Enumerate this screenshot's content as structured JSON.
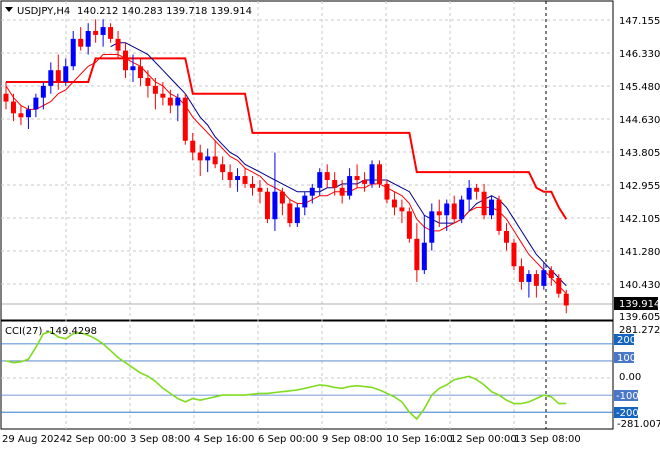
{
  "header": {
    "symbol_timeframe": "USDJPY,H4",
    "ohlc": "140.212 140.283 139.718 139.914"
  },
  "price_panel": {
    "axis_labels": [
      "147.155",
      "146.330",
      "145.480",
      "144.630",
      "143.805",
      "142.955",
      "142.105",
      "141.280",
      "140.430",
      "139.605"
    ],
    "current_price": "139.914"
  },
  "cci_panel": {
    "title": "CCI(27) -149.4298",
    "axis_labels": [
      "281.2729",
      "0.00",
      "-281.0073"
    ],
    "levels": [
      "200",
      "100",
      "-100",
      "-200"
    ]
  },
  "time_axis": [
    "29 Aug 2024",
    "2 Sep 00:00",
    "3 Sep 08:00",
    "4 Sep 16:00",
    "6 Sep 00:00",
    "9 Sep 08:00",
    "10 Sep 16:00",
    "12 Sep 00:00",
    "13 Sep 08:00"
  ],
  "colors": {
    "bull": "#0000ff",
    "bear": "#ff0000",
    "ma_fast": "#ff0000",
    "ma_slow": "#00008b",
    "cci": "#7fdc1e",
    "level_band": "#1565c0",
    "level_band_light": "#4a78c8"
  },
  "chart_data": [
    {
      "type": "candlestick",
      "title": "USDJPY,H4",
      "ylim": [
        139.605,
        147.155
      ],
      "candles": [
        [
          145.3,
          145.6,
          144.9,
          145.1
        ],
        [
          145.1,
          145.3,
          144.6,
          144.8
        ],
        [
          144.8,
          145.0,
          144.5,
          144.7
        ],
        [
          144.7,
          145.0,
          144.4,
          144.9
        ],
        [
          144.9,
          145.3,
          144.7,
          145.2
        ],
        [
          145.2,
          145.6,
          144.9,
          145.5
        ],
        [
          145.5,
          146.1,
          145.3,
          145.9
        ],
        [
          145.9,
          146.3,
          145.4,
          145.6
        ],
        [
          145.6,
          146.2,
          145.5,
          146.0
        ],
        [
          146.0,
          146.9,
          145.9,
          146.7
        ],
        [
          146.7,
          147.0,
          146.4,
          146.5
        ],
        [
          146.5,
          147.1,
          146.3,
          146.9
        ],
        [
          146.9,
          147.2,
          146.6,
          146.8
        ],
        [
          146.8,
          147.2,
          146.5,
          147.0
        ],
        [
          147.0,
          147.1,
          146.6,
          146.7
        ],
        [
          146.7,
          146.9,
          146.2,
          146.4
        ],
        [
          146.4,
          146.6,
          145.7,
          145.9
        ],
        [
          145.9,
          146.3,
          145.6,
          146.0
        ],
        [
          146.0,
          146.2,
          145.5,
          145.7
        ],
        [
          145.7,
          145.9,
          145.2,
          145.5
        ],
        [
          145.5,
          145.7,
          144.9,
          145.3
        ],
        [
          145.3,
          145.6,
          145.0,
          145.2
        ],
        [
          145.2,
          145.4,
          144.8,
          145.0
        ],
        [
          145.0,
          145.3,
          144.6,
          145.2
        ],
        [
          145.2,
          145.3,
          144.0,
          144.1
        ],
        [
          144.1,
          144.3,
          143.6,
          143.8
        ],
        [
          143.8,
          144.0,
          143.2,
          143.6
        ],
        [
          143.6,
          143.9,
          143.3,
          143.7
        ],
        [
          143.7,
          144.1,
          143.4,
          143.5
        ],
        [
          143.5,
          143.7,
          143.1,
          143.3
        ],
        [
          143.3,
          143.5,
          142.9,
          143.1
        ],
        [
          143.1,
          143.4,
          142.8,
          143.2
        ],
        [
          143.2,
          143.4,
          142.9,
          143.0
        ],
        [
          143.0,
          143.2,
          142.7,
          142.9
        ],
        [
          142.9,
          143.1,
          142.5,
          142.8
        ],
        [
          142.8,
          142.9,
          142.0,
          142.1
        ],
        [
          142.1,
          143.8,
          141.8,
          142.8
        ],
        [
          142.8,
          142.9,
          142.2,
          142.5
        ],
        [
          142.5,
          142.6,
          141.9,
          142.0
        ],
        [
          142.0,
          142.5,
          141.9,
          142.4
        ],
        [
          142.4,
          142.8,
          142.2,
          142.7
        ],
        [
          142.7,
          143.0,
          142.5,
          142.9
        ],
        [
          142.9,
          143.4,
          142.7,
          143.3
        ],
        [
          143.3,
          143.5,
          142.9,
          143.1
        ],
        [
          143.1,
          143.3,
          142.7,
          142.9
        ],
        [
          142.9,
          143.1,
          142.5,
          142.7
        ],
        [
          142.7,
          143.4,
          142.6,
          143.2
        ],
        [
          143.2,
          143.5,
          142.9,
          143.1
        ],
        [
          143.1,
          143.3,
          142.8,
          143.0
        ],
        [
          143.0,
          143.6,
          142.9,
          143.5
        ],
        [
          143.5,
          143.6,
          142.9,
          143.0
        ],
        [
          143.0,
          143.1,
          142.5,
          142.6
        ],
        [
          142.6,
          142.8,
          142.2,
          142.4
        ],
        [
          142.4,
          142.6,
          142.0,
          142.3
        ],
        [
          142.3,
          142.4,
          141.5,
          141.6
        ],
        [
          141.6,
          142.0,
          140.5,
          140.8
        ],
        [
          140.8,
          142.2,
          140.7,
          141.5
        ],
        [
          141.5,
          142.5,
          141.3,
          142.3
        ],
        [
          142.3,
          142.6,
          141.9,
          142.2
        ],
        [
          142.2,
          142.6,
          141.8,
          142.5
        ],
        [
          142.5,
          142.7,
          142.0,
          142.1
        ],
        [
          142.1,
          142.7,
          142.0,
          142.6
        ],
        [
          142.6,
          143.1,
          142.3,
          142.9
        ],
        [
          142.9,
          143.0,
          142.6,
          142.8
        ],
        [
          142.8,
          143.0,
          142.1,
          142.2
        ],
        [
          142.2,
          142.7,
          142.1,
          142.6
        ],
        [
          142.6,
          142.7,
          141.7,
          141.8
        ],
        [
          141.8,
          142.0,
          141.3,
          141.5
        ],
        [
          141.5,
          141.6,
          140.8,
          140.9
        ],
        [
          140.9,
          141.1,
          140.3,
          140.5
        ],
        [
          140.5,
          140.8,
          140.1,
          140.7
        ],
        [
          140.7,
          140.8,
          140.1,
          140.4
        ],
        [
          140.4,
          141.0,
          140.3,
          140.8
        ],
        [
          140.8,
          140.9,
          140.4,
          140.6
        ],
        [
          140.6,
          140.7,
          140.1,
          140.2
        ],
        [
          140.2,
          140.3,
          139.7,
          139.9
        ]
      ],
      "ma_fast": [
        145.5,
        145.2,
        145.0,
        144.9,
        144.9,
        145.0,
        145.1,
        145.3,
        145.4,
        145.6,
        145.8,
        146.0,
        146.1,
        146.3,
        146.3,
        146.3,
        146.2,
        146.1,
        146.0,
        145.8,
        145.6,
        145.5,
        145.3,
        145.2,
        145.0,
        144.7,
        144.5,
        144.3,
        144.1,
        143.9,
        143.7,
        143.6,
        143.4,
        143.3,
        143.2,
        143.0,
        142.9,
        142.8,
        142.6,
        142.5,
        142.5,
        142.6,
        142.7,
        142.7,
        142.8,
        142.8,
        142.8,
        142.9,
        142.9,
        143.0,
        143.0,
        142.9,
        142.8,
        142.7,
        142.5,
        142.1,
        141.9,
        141.8,
        141.8,
        141.9,
        142.0,
        142.1,
        142.3,
        142.4,
        142.4,
        142.4,
        142.3,
        142.1,
        141.8,
        141.5,
        141.2,
        141.0,
        140.8,
        140.6,
        140.4,
        140.2
      ],
      "ma_slow": [
        null,
        null,
        null,
        null,
        null,
        null,
        null,
        null,
        null,
        null,
        null,
        null,
        null,
        null,
        146.5,
        146.6,
        146.6,
        146.5,
        146.4,
        146.3,
        146.1,
        145.9,
        145.7,
        145.5,
        145.3,
        145.0,
        144.7,
        144.5,
        144.2,
        144.0,
        143.8,
        143.7,
        143.5,
        143.4,
        143.3,
        143.2,
        143.1,
        143.0,
        142.9,
        142.8,
        142.8,
        142.8,
        142.8,
        142.9,
        142.9,
        143.0,
        143.0,
        143.0,
        143.1,
        143.1,
        143.1,
        143.1,
        143.0,
        142.9,
        142.8,
        142.5,
        142.2,
        142.1,
        142.0,
        142.0,
        142.0,
        142.1,
        142.3,
        142.5,
        142.6,
        142.7,
        142.6,
        142.4,
        142.1,
        141.8,
        141.5,
        141.2,
        141.0,
        140.8,
        140.6,
        140.4
      ],
      "stop_line": [
        145.6,
        145.6,
        145.6,
        145.6,
        145.6,
        145.6,
        145.6,
        145.6,
        145.6,
        145.6,
        145.6,
        145.6,
        146.2,
        146.2,
        146.2,
        146.2,
        146.2,
        146.2,
        146.2,
        146.2,
        146.2,
        146.2,
        146.2,
        146.2,
        146.2,
        145.3,
        145.3,
        145.3,
        145.3,
        145.3,
        145.3,
        145.3,
        145.3,
        144.3,
        144.3,
        144.3,
        144.3,
        144.3,
        144.3,
        144.3,
        144.3,
        144.3,
        144.3,
        144.3,
        144.3,
        144.3,
        144.3,
        144.3,
        144.3,
        144.3,
        144.3,
        144.3,
        144.3,
        144.3,
        144.3,
        143.3,
        143.3,
        143.3,
        143.3,
        143.3,
        143.3,
        143.3,
        143.3,
        143.3,
        143.3,
        143.3,
        143.3,
        143.3,
        143.3,
        143.3,
        143.3,
        142.9,
        142.8,
        142.8,
        142.4,
        142.1
      ]
    },
    {
      "type": "line",
      "title": "CCI(27) -149.4298",
      "ylim": [
        -281.0073,
        281.2729
      ],
      "levels": [
        200,
        100,
        0,
        -100,
        -200
      ],
      "values": [
        100,
        90,
        95,
        110,
        180,
        260,
        270,
        240,
        230,
        260,
        265,
        250,
        230,
        200,
        160,
        120,
        90,
        60,
        30,
        10,
        -20,
        -60,
        -90,
        -120,
        -140,
        -120,
        -130,
        -120,
        -110,
        -100,
        -100,
        -100,
        -100,
        -95,
        -90,
        -90,
        -85,
        -80,
        -75,
        -70,
        -60,
        -50,
        -40,
        -45,
        -55,
        -60,
        -50,
        -45,
        -50,
        -55,
        -70,
        -90,
        -110,
        -140,
        -200,
        -240,
        -180,
        -100,
        -60,
        -40,
        -10,
        0,
        10,
        -10,
        -40,
        -80,
        -100,
        -130,
        -150,
        -150,
        -140,
        -120,
        -100,
        -110,
        -150,
        -149
      ]
    }
  ]
}
